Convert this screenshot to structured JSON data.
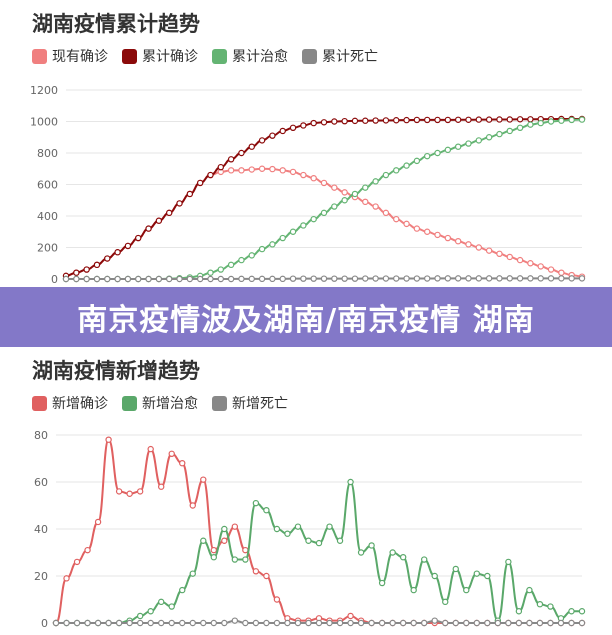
{
  "colors": {
    "current_confirmed": "#f07f7f",
    "cumulative_confirmed": "#8b0a0a",
    "cumulative_recovered": "#64b473",
    "cumulative_death": "#888888",
    "new_confirmed": "#e06060",
    "new_recovered": "#5aa86a",
    "new_death": "#888888",
    "banner_bg": "#8378c8"
  },
  "banner": {
    "text": "南京疫情波及湖南/南京疫情 湖南"
  },
  "chart_data": [
    {
      "type": "line",
      "title": "湖南疫情累计趋势",
      "legend_position": "top-left",
      "grid": true,
      "ylim": [
        0,
        1200
      ],
      "yticks": [
        0,
        200,
        400,
        600,
        800,
        1000,
        1200
      ],
      "x_count": 51,
      "series": [
        {
          "name": "现有确诊",
          "color_key": "current_confirmed",
          "values": [
            20,
            40,
            60,
            90,
            130,
            170,
            210,
            260,
            320,
            370,
            420,
            480,
            540,
            610,
            660,
            680,
            690,
            690,
            695,
            700,
            698,
            690,
            680,
            660,
            640,
            610,
            580,
            550,
            520,
            490,
            460,
            420,
            380,
            350,
            320,
            300,
            280,
            260,
            240,
            220,
            200,
            180,
            160,
            140,
            120,
            100,
            80,
            60,
            40,
            25,
            15
          ]
        },
        {
          "name": "累计确诊",
          "color_key": "cumulative_confirmed",
          "values": [
            20,
            40,
            60,
            90,
            130,
            170,
            210,
            260,
            320,
            370,
            420,
            480,
            540,
            610,
            660,
            710,
            760,
            800,
            840,
            880,
            910,
            940,
            960,
            975,
            990,
            995,
            1000,
            1002,
            1004,
            1005,
            1006,
            1007,
            1008,
            1009,
            1010,
            1010,
            1010,
            1010,
            1011,
            1011,
            1012,
            1012,
            1013,
            1013,
            1014,
            1014,
            1015,
            1015,
            1016,
            1016,
            1016
          ]
        },
        {
          "name": "累计治愈",
          "color_key": "cumulative_recovered",
          "values": [
            0,
            0,
            0,
            0,
            0,
            0,
            0,
            0,
            0,
            0,
            2,
            5,
            10,
            20,
            40,
            60,
            90,
            120,
            150,
            190,
            220,
            260,
            300,
            340,
            380,
            420,
            460,
            500,
            540,
            580,
            620,
            660,
            690,
            720,
            750,
            780,
            800,
            820,
            840,
            860,
            880,
            900,
            920,
            940,
            960,
            980,
            990,
            1000,
            1005,
            1010,
            1012
          ]
        },
        {
          "name": "累计死亡",
          "color_key": "cumulative_death",
          "values": [
            0,
            0,
            0,
            0,
            0,
            0,
            0,
            0,
            0,
            0,
            0,
            0,
            0,
            0,
            0,
            0,
            0,
            1,
            1,
            1,
            1,
            1,
            2,
            2,
            2,
            2,
            2,
            2,
            2,
            3,
            3,
            3,
            3,
            3,
            3,
            3,
            4,
            4,
            4,
            4,
            4,
            4,
            4,
            4,
            4,
            4,
            4,
            4,
            4,
            4,
            4
          ]
        }
      ]
    },
    {
      "type": "line",
      "title": "湖南疫情新增趋势",
      "legend_position": "top-left",
      "grid": true,
      "ylim": [
        0,
        80
      ],
      "yticks": [
        0,
        20,
        40,
        60,
        80
      ],
      "x_count": 51,
      "series": [
        {
          "name": "新增确诊",
          "color_key": "new_confirmed",
          "values": [
            0,
            19,
            26,
            31,
            43,
            78,
            56,
            55,
            56,
            74,
            58,
            72,
            68,
            50,
            61,
            31,
            35,
            41,
            31,
            22,
            20,
            10,
            2,
            1,
            1,
            2,
            1,
            1,
            3,
            1,
            0,
            0,
            0,
            0,
            0,
            0,
            0,
            0,
            0,
            0,
            0,
            0,
            0,
            0,
            0,
            0,
            0,
            0,
            0,
            0,
            0
          ]
        },
        {
          "name": "新增治愈",
          "color_key": "new_recovered",
          "values": [
            0,
            0,
            0,
            0,
            0,
            0,
            0,
            1,
            3,
            5,
            9,
            7,
            14,
            21,
            35,
            28,
            40,
            27,
            27,
            51,
            48,
            40,
            38,
            41,
            35,
            34,
            41,
            35,
            60,
            30,
            33,
            17,
            30,
            28,
            14,
            27,
            20,
            9,
            23,
            14,
            21,
            20,
            1,
            26,
            5,
            14,
            8,
            7,
            2,
            5,
            5
          ]
        },
        {
          "name": "新增死亡",
          "color_key": "new_death",
          "values": [
            0,
            0,
            0,
            0,
            0,
            0,
            0,
            0,
            0,
            0,
            0,
            0,
            0,
            0,
            0,
            0,
            0,
            1,
            0,
            0,
            0,
            0,
            0,
            0,
            0,
            0,
            0,
            0,
            0,
            0,
            0,
            0,
            0,
            0,
            0,
            0,
            1,
            0,
            0,
            0,
            0,
            0,
            0,
            0,
            0,
            0,
            0,
            0,
            0,
            0,
            0
          ]
        }
      ]
    }
  ]
}
